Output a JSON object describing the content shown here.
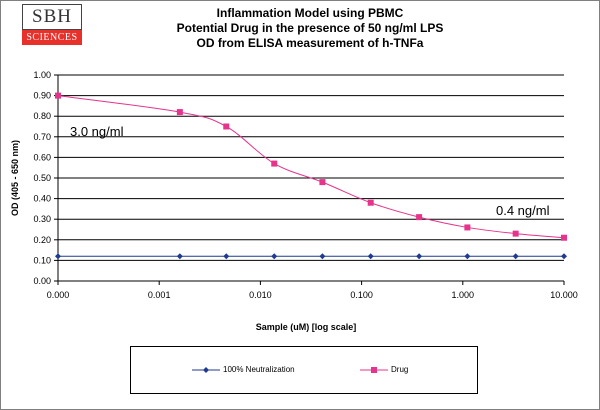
{
  "logo": {
    "top": "SBH",
    "bottom": "SCIENCES"
  },
  "chart_data": {
    "type": "line",
    "title": [
      "Inflammation Model using PBMC",
      "Potential Drug in the presence of 50 ng/ml LPS",
      "OD from ELISA measurement of h-TNFa"
    ],
    "xlabel": "Sample (uM) [log scale]",
    "ylabel": "OD (405 - 650 nm)",
    "x_scale": "log",
    "x_tick_labels": [
      "0.000",
      "0.001",
      "0.010",
      "0.100",
      "1.000",
      "10.000"
    ],
    "ylim": [
      0,
      1
    ],
    "y_tick_labels": [
      "0.00",
      "0.10",
      "0.20",
      "0.30",
      "0.40",
      "0.50",
      "0.60",
      "0.70",
      "0.80",
      "0.90",
      "1.00"
    ],
    "grid": "horizontal",
    "x": [
      0.0001,
      0.0016,
      0.0046,
      0.0137,
      0.041,
      0.123,
      0.37,
      1.11,
      3.33,
      10.0
    ],
    "series": [
      {
        "name": "100% Neutralization",
        "color": "#1f3a8f",
        "marker": "diamond",
        "values": [
          0.12,
          0.12,
          0.12,
          0.12,
          0.12,
          0.12,
          0.12,
          0.12,
          0.12,
          0.12
        ]
      },
      {
        "name": "Drug",
        "color": "#e6338b",
        "marker": "square",
        "values": [
          0.9,
          0.82,
          0.75,
          0.57,
          0.48,
          0.38,
          0.31,
          0.26,
          0.23,
          0.21
        ]
      }
    ],
    "annotations": [
      "3.0 ng/ml",
      "0.4 ng/ml"
    ],
    "legend_position": "bottom"
  }
}
